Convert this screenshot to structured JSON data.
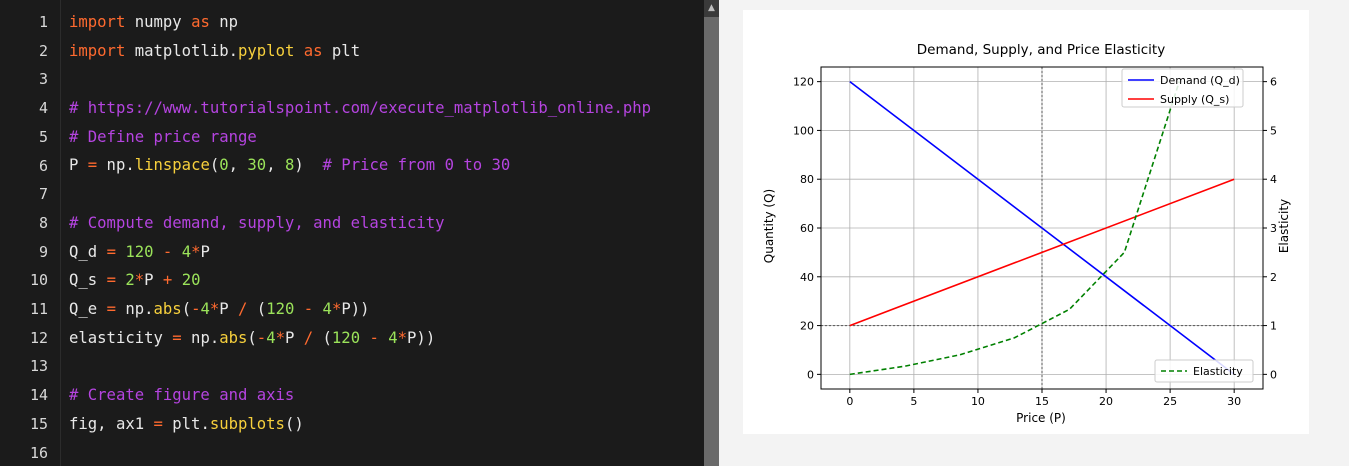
{
  "editor": {
    "line_numbers": [
      "1",
      "2",
      "3",
      "4",
      "5",
      "6",
      "7",
      "8",
      "9",
      "10",
      "11",
      "12",
      "13",
      "14",
      "15",
      "16"
    ],
    "lines": [
      [
        {
          "t": "kw",
          "v": "import"
        },
        {
          "t": "tx",
          "v": " numpy "
        },
        {
          "t": "kw",
          "v": "as"
        },
        {
          "t": "tx",
          "v": " np"
        }
      ],
      [
        {
          "t": "kw",
          "v": "import"
        },
        {
          "t": "tx",
          "v": " matplotlib."
        },
        {
          "t": "fn",
          "v": "pyplot"
        },
        {
          "t": "tx",
          "v": " "
        },
        {
          "t": "kw",
          "v": "as"
        },
        {
          "t": "tx",
          "v": " plt"
        }
      ],
      [],
      [
        {
          "t": "cm",
          "v": "# https://www.tutorialspoint.com/execute_matplotlib_online.php"
        }
      ],
      [
        {
          "t": "cm",
          "v": "# Define price range"
        }
      ],
      [
        {
          "t": "tx",
          "v": "P "
        },
        {
          "t": "op",
          "v": "="
        },
        {
          "t": "tx",
          "v": " np."
        },
        {
          "t": "fn",
          "v": "linspace"
        },
        {
          "t": "tx",
          "v": "("
        },
        {
          "t": "num",
          "v": "0"
        },
        {
          "t": "tx",
          "v": ", "
        },
        {
          "t": "num",
          "v": "30"
        },
        {
          "t": "tx",
          "v": ", "
        },
        {
          "t": "num",
          "v": "8"
        },
        {
          "t": "tx",
          "v": ")  "
        },
        {
          "t": "cm",
          "v": "# Price from 0 to 30"
        }
      ],
      [],
      [
        {
          "t": "cm",
          "v": "# Compute demand, supply, and elasticity"
        }
      ],
      [
        {
          "t": "tx",
          "v": "Q_d "
        },
        {
          "t": "op",
          "v": "="
        },
        {
          "t": "tx",
          "v": " "
        },
        {
          "t": "num",
          "v": "120"
        },
        {
          "t": "tx",
          "v": " "
        },
        {
          "t": "op",
          "v": "-"
        },
        {
          "t": "tx",
          "v": " "
        },
        {
          "t": "num",
          "v": "4"
        },
        {
          "t": "op",
          "v": "*"
        },
        {
          "t": "tx",
          "v": "P"
        }
      ],
      [
        {
          "t": "tx",
          "v": "Q_s "
        },
        {
          "t": "op",
          "v": "="
        },
        {
          "t": "tx",
          "v": " "
        },
        {
          "t": "num",
          "v": "2"
        },
        {
          "t": "op",
          "v": "*"
        },
        {
          "t": "tx",
          "v": "P "
        },
        {
          "t": "op",
          "v": "+"
        },
        {
          "t": "tx",
          "v": " "
        },
        {
          "t": "num",
          "v": "20"
        }
      ],
      [
        {
          "t": "tx",
          "v": "Q_e "
        },
        {
          "t": "op",
          "v": "="
        },
        {
          "t": "tx",
          "v": " np."
        },
        {
          "t": "fn",
          "v": "abs"
        },
        {
          "t": "tx",
          "v": "("
        },
        {
          "t": "op",
          "v": "-"
        },
        {
          "t": "num",
          "v": "4"
        },
        {
          "t": "op",
          "v": "*"
        },
        {
          "t": "tx",
          "v": "P "
        },
        {
          "t": "op",
          "v": "/"
        },
        {
          "t": "tx",
          "v": " ("
        },
        {
          "t": "num",
          "v": "120"
        },
        {
          "t": "tx",
          "v": " "
        },
        {
          "t": "op",
          "v": "-"
        },
        {
          "t": "tx",
          "v": " "
        },
        {
          "t": "num",
          "v": "4"
        },
        {
          "t": "op",
          "v": "*"
        },
        {
          "t": "tx",
          "v": "P))"
        }
      ],
      [
        {
          "t": "tx",
          "v": "elasticity "
        },
        {
          "t": "op",
          "v": "="
        },
        {
          "t": "tx",
          "v": " np."
        },
        {
          "t": "fn",
          "v": "abs"
        },
        {
          "t": "tx",
          "v": "("
        },
        {
          "t": "op",
          "v": "-"
        },
        {
          "t": "num",
          "v": "4"
        },
        {
          "t": "op",
          "v": "*"
        },
        {
          "t": "tx",
          "v": "P "
        },
        {
          "t": "op",
          "v": "/"
        },
        {
          "t": "tx",
          "v": " ("
        },
        {
          "t": "num",
          "v": "120"
        },
        {
          "t": "tx",
          "v": " "
        },
        {
          "t": "op",
          "v": "-"
        },
        {
          "t": "tx",
          "v": " "
        },
        {
          "t": "num",
          "v": "4"
        },
        {
          "t": "op",
          "v": "*"
        },
        {
          "t": "tx",
          "v": "P))"
        }
      ],
      [],
      [
        {
          "t": "cm",
          "v": "# Create figure and axis"
        }
      ],
      [
        {
          "t": "tx",
          "v": "fig, ax1 "
        },
        {
          "t": "op",
          "v": "="
        },
        {
          "t": "tx",
          "v": " plt."
        },
        {
          "t": "fn",
          "v": "subplots"
        },
        {
          "t": "tx",
          "v": "()"
        }
      ],
      []
    ],
    "colors": {
      "kw": "#ff6a2f",
      "cm": "#b544e0",
      "num": "#9be35a",
      "op": "#ff6a2f",
      "fn": "#f7d03c",
      "tx": "#e8e8e8"
    }
  },
  "chart_data": {
    "type": "line",
    "title": "Demand, Supply, and Price Elasticity",
    "xlabel": "Price (P)",
    "ylabel": "Quantity (Q)",
    "ylabel_right": "Elasticity",
    "xlim": [
      -2.25,
      32.25
    ],
    "ylim": [
      -6,
      126
    ],
    "ylim_right": [
      -0.3,
      6.3
    ],
    "xticks": [
      0,
      5,
      10,
      15,
      20,
      25,
      30
    ],
    "yticks": [
      0,
      20,
      40,
      60,
      80,
      100,
      120
    ],
    "yticks_right": [
      0,
      1,
      2,
      3,
      4,
      5,
      6
    ],
    "grid": true,
    "reference_lines": {
      "vertical_x": 15,
      "horizontal_right_y": 1
    },
    "series": [
      {
        "name": "Demand (Q_d)",
        "axis": "left",
        "color": "#0000ff",
        "style": "solid",
        "x": [
          0,
          30
        ],
        "y": [
          120,
          0
        ]
      },
      {
        "name": "Supply (Q_s)",
        "axis": "left",
        "color": "#ff0000",
        "style": "solid",
        "x": [
          0,
          30
        ],
        "y": [
          20,
          80
        ]
      },
      {
        "name": "Elasticity",
        "axis": "right",
        "color": "#008000",
        "style": "dashed",
        "x": [
          0,
          4.2857,
          8.5714,
          12.8571,
          17.1429,
          21.4286,
          25.7143
        ],
        "y": [
          0,
          0.1667,
          0.4,
          0.75,
          1.3333,
          2.5,
          6.0
        ]
      }
    ],
    "legends": [
      {
        "placement": "upper-right",
        "entries": [
          "Demand (Q_d)",
          "Supply (Q_s)"
        ]
      },
      {
        "placement": "lower-right",
        "entries": [
          "Elasticity"
        ]
      }
    ]
  }
}
